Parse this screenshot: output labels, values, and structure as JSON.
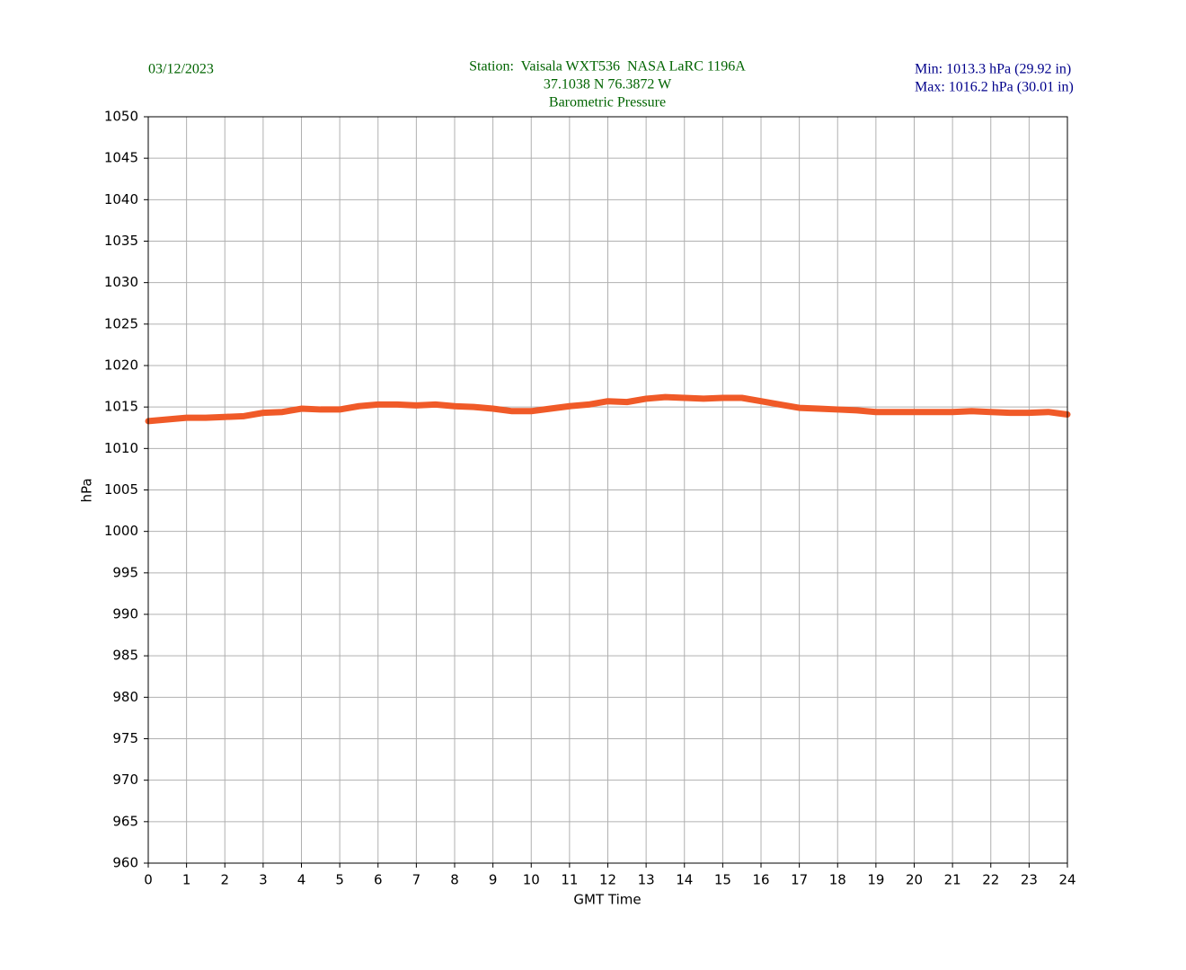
{
  "chart_data": {
    "type": "line",
    "date": "03/12/2023",
    "title_lines": [
      "Station:  Vaisala WXT536  NASA LaRC 1196A",
      "37.1038 N 76.3872 W",
      "Barometric Pressure"
    ],
    "stats_lines": [
      "Min: 1013.3 hPa (29.92 in)",
      "Max: 1016.2 hPa (30.01 in)"
    ],
    "xlabel": "GMT Time",
    "ylabel": "hPa",
    "x": [
      0,
      0.5,
      1,
      1.5,
      2,
      2.5,
      3,
      3.5,
      4,
      4.5,
      5,
      5.5,
      6,
      6.5,
      7,
      7.5,
      8,
      8.5,
      9,
      9.5,
      10,
      10.5,
      11,
      11.5,
      12,
      12.5,
      13,
      13.5,
      14,
      14.5,
      15,
      15.5,
      16,
      16.5,
      17,
      17.5,
      18,
      18.5,
      19,
      19.5,
      20,
      20.5,
      21,
      21.5,
      22,
      22.5,
      23,
      23.5,
      24
    ],
    "values": [
      1013.3,
      1013.5,
      1013.7,
      1013.7,
      1013.8,
      1013.9,
      1014.3,
      1014.4,
      1014.8,
      1014.7,
      1014.7,
      1015.1,
      1015.3,
      1015.3,
      1015.2,
      1015.3,
      1015.1,
      1015.0,
      1014.8,
      1014.5,
      1014.5,
      1014.8,
      1015.1,
      1015.3,
      1015.7,
      1015.6,
      1016.0,
      1016.2,
      1016.1,
      1016.0,
      1016.1,
      1016.1,
      1015.7,
      1015.3,
      1014.9,
      1014.8,
      1014.7,
      1014.6,
      1014.4,
      1014.4,
      1014.4,
      1014.4,
      1014.4,
      1014.5,
      1014.4,
      1014.3,
      1014.3,
      1014.4,
      1014.1
    ],
    "color": "#f05a28",
    "xlim": [
      0,
      24
    ],
    "xticks": [
      0,
      1,
      2,
      3,
      4,
      5,
      6,
      7,
      8,
      9,
      10,
      11,
      12,
      13,
      14,
      15,
      16,
      17,
      18,
      19,
      20,
      21,
      22,
      23,
      24
    ],
    "ylim": [
      960,
      1050
    ],
    "yticks": [
      960,
      965,
      970,
      975,
      980,
      985,
      990,
      995,
      1000,
      1005,
      1010,
      1015,
      1020,
      1025,
      1030,
      1035,
      1040,
      1045,
      1050
    ],
    "grid": true
  }
}
